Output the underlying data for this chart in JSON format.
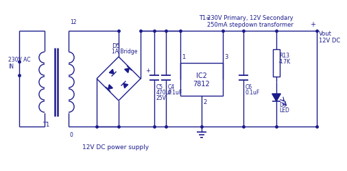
{
  "bg_color": "#ffffff",
  "line_color": "#1a1a8c",
  "text_color": "#1a1a8c",
  "title": "12V DC power supply",
  "t1_label": "T1=",
  "t1_desc1": "230V Primary, 12V Secondary",
  "t1_desc2": "250mA stepdown transformer",
  "input_label1": "230V AC",
  "input_label2": "IN",
  "t1_name": "T1",
  "d5_label": "D5",
  "d5_sub": "1A Bridge",
  "ic2_line1": "IC2",
  "ic2_line2": "7812",
  "c5_label": "C5",
  "c5_sub": "470uF",
  "c5_sub2": "25V",
  "c4_label": "C4",
  "c4_sub": "0.1uF",
  "c6_label": "C6",
  "c6_sub": "0.1uF",
  "r13_label": "R13",
  "r13_sub": "4.7K",
  "d6_label": "D6",
  "d6_sub": "LED",
  "vout_label": "Vout",
  "vout_sub": "12V DC",
  "node_12": "12",
  "node_0": "0",
  "node_1": "1",
  "node_2": "2",
  "node_3": "3",
  "plus_sign": "+"
}
